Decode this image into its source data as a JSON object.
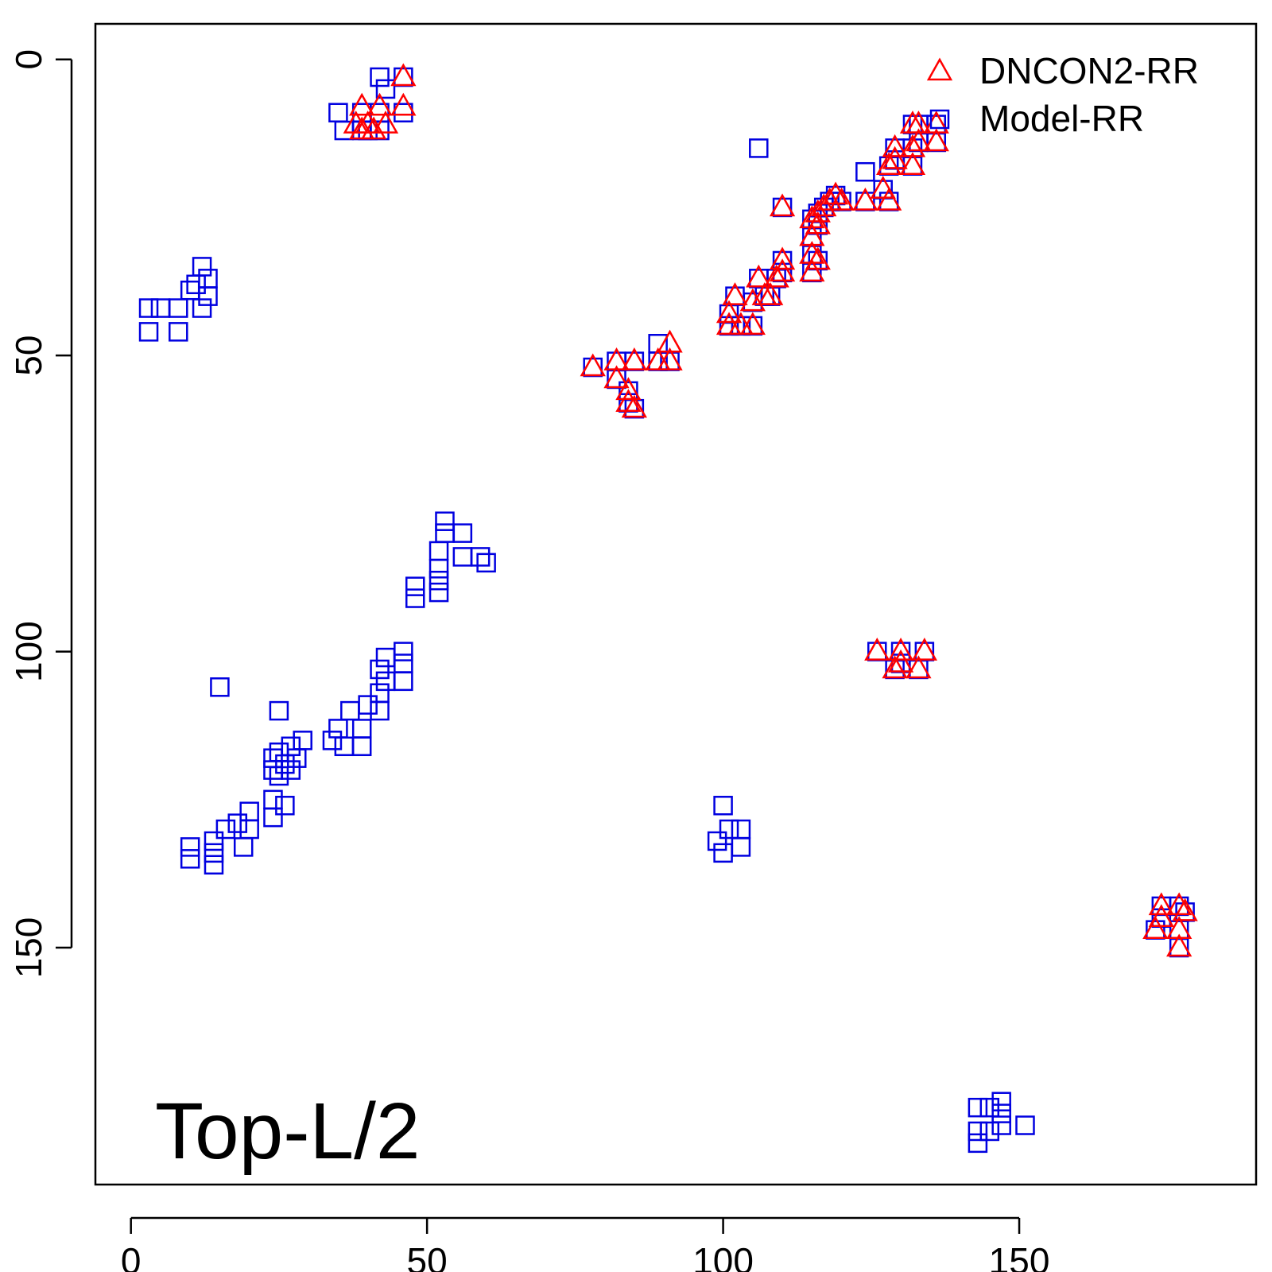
{
  "chart_data": {
    "type": "scatter",
    "annotation": "Top-L/2",
    "xlim": [
      -6,
      190
    ],
    "ylim": [
      190,
      -6
    ],
    "y_axis_inverted": true,
    "x_ticks": [
      0,
      50,
      100,
      150
    ],
    "y_ticks": [
      0,
      50,
      100,
      150
    ],
    "grid": false,
    "legend_position": "top-right",
    "series": [
      {
        "name": "DNCON2-RR",
        "color": "#ff0000",
        "marker": "triangle",
        "points": [
          [
            46,
            3
          ],
          [
            39,
            8
          ],
          [
            42,
            8
          ],
          [
            46,
            8
          ],
          [
            38,
            11
          ],
          [
            40,
            11
          ],
          [
            43,
            11
          ],
          [
            39,
            12
          ],
          [
            41,
            12
          ],
          [
            110,
            25
          ],
          [
            115,
            27
          ],
          [
            116,
            26
          ],
          [
            117,
            25
          ],
          [
            118,
            24
          ],
          [
            119,
            23
          ],
          [
            120,
            24
          ],
          [
            124,
            24
          ],
          [
            128,
            24
          ],
          [
            115,
            30
          ],
          [
            116,
            28
          ],
          [
            127,
            22
          ],
          [
            128,
            18
          ],
          [
            129,
            17
          ],
          [
            129,
            15
          ],
          [
            132,
            18
          ],
          [
            132,
            15
          ],
          [
            133,
            14
          ],
          [
            132,
            11
          ],
          [
            133,
            11
          ],
          [
            136,
            11
          ],
          [
            136,
            14
          ],
          [
            115,
            33
          ],
          [
            116,
            34
          ],
          [
            115,
            36
          ],
          [
            110,
            34
          ],
          [
            110,
            36
          ],
          [
            109,
            37
          ],
          [
            106,
            37
          ],
          [
            107,
            40
          ],
          [
            105,
            41
          ],
          [
            102,
            40
          ],
          [
            101,
            43
          ],
          [
            101,
            45
          ],
          [
            103,
            45
          ],
          [
            105,
            45
          ],
          [
            108,
            40
          ],
          [
            78,
            52
          ],
          [
            82,
            51
          ],
          [
            82,
            54
          ],
          [
            85,
            51
          ],
          [
            84,
            56
          ],
          [
            84,
            58
          ],
          [
            85,
            59
          ],
          [
            89,
            51
          ],
          [
            91,
            51
          ],
          [
            91,
            48
          ],
          [
            126,
            100
          ],
          [
            130,
            100
          ],
          [
            130,
            102
          ],
          [
            129,
            103
          ],
          [
            133,
            103
          ],
          [
            134,
            100
          ],
          [
            174,
            143
          ],
          [
            174,
            145
          ],
          [
            177,
            143
          ],
          [
            178,
            144
          ],
          [
            173,
            147
          ],
          [
            177,
            147
          ],
          [
            177,
            150
          ]
        ]
      },
      {
        "name": "Model-RR",
        "color": "#0000e0",
        "marker": "square",
        "points": [
          [
            42,
            3
          ],
          [
            46,
            3
          ],
          [
            43,
            5
          ],
          [
            35,
            9
          ],
          [
            39,
            9
          ],
          [
            42,
            9
          ],
          [
            46,
            9
          ],
          [
            36,
            12
          ],
          [
            39,
            12
          ],
          [
            40,
            12
          ],
          [
            42,
            12
          ],
          [
            106,
            15
          ],
          [
            110,
            25
          ],
          [
            115,
            27
          ],
          [
            116,
            26
          ],
          [
            117,
            25
          ],
          [
            118,
            24
          ],
          [
            119,
            23
          ],
          [
            120,
            24
          ],
          [
            124,
            24
          ],
          [
            128,
            24
          ],
          [
            124,
            19
          ],
          [
            127,
            22
          ],
          [
            115,
            30
          ],
          [
            116,
            28
          ],
          [
            128,
            18
          ],
          [
            129,
            17
          ],
          [
            129,
            15
          ],
          [
            132,
            18
          ],
          [
            132,
            15
          ],
          [
            133,
            14
          ],
          [
            132,
            11
          ],
          [
            133,
            11
          ],
          [
            136,
            11
          ],
          [
            136,
            14
          ],
          [
            115,
            33
          ],
          [
            116,
            34
          ],
          [
            115,
            36
          ],
          [
            110,
            34
          ],
          [
            110,
            36
          ],
          [
            109,
            37
          ],
          [
            106,
            37
          ],
          [
            107,
            40
          ],
          [
            105,
            41
          ],
          [
            102,
            40
          ],
          [
            101,
            43
          ],
          [
            101,
            45
          ],
          [
            103,
            45
          ],
          [
            105,
            45
          ],
          [
            108,
            40
          ],
          [
            78,
            52
          ],
          [
            82,
            51
          ],
          [
            82,
            54
          ],
          [
            85,
            51
          ],
          [
            84,
            56
          ],
          [
            84,
            58
          ],
          [
            85,
            59
          ],
          [
            89,
            51
          ],
          [
            91,
            51
          ],
          [
            89,
            48
          ],
          [
            126,
            100
          ],
          [
            130,
            100
          ],
          [
            130,
            102
          ],
          [
            129,
            103
          ],
          [
            133,
            103
          ],
          [
            134,
            100
          ],
          [
            174,
            143
          ],
          [
            174,
            145
          ],
          [
            177,
            143
          ],
          [
            178,
            144
          ],
          [
            173,
            147
          ],
          [
            177,
            147
          ],
          [
            177,
            150
          ],
          [
            12,
            35
          ],
          [
            13,
            37
          ],
          [
            10,
            39
          ],
          [
            13,
            40
          ],
          [
            12,
            42
          ],
          [
            8,
            42
          ],
          [
            5,
            42
          ],
          [
            3,
            42
          ],
          [
            3,
            46
          ],
          [
            8,
            46
          ],
          [
            11,
            38
          ],
          [
            53,
            78
          ],
          [
            53,
            80
          ],
          [
            56,
            80
          ],
          [
            52,
            83
          ],
          [
            56,
            84
          ],
          [
            59,
            84
          ],
          [
            60,
            85
          ],
          [
            52,
            86
          ],
          [
            52,
            88
          ],
          [
            48,
            89
          ],
          [
            52,
            90
          ],
          [
            48,
            91
          ],
          [
            46,
            100
          ],
          [
            43,
            101
          ],
          [
            46,
            102
          ],
          [
            42,
            103
          ],
          [
            43,
            105
          ],
          [
            46,
            105
          ],
          [
            42,
            107
          ],
          [
            40,
            109
          ],
          [
            37,
            110
          ],
          [
            42,
            110
          ],
          [
            35,
            113
          ],
          [
            39,
            113
          ],
          [
            34,
            115
          ],
          [
            36,
            116
          ],
          [
            39,
            116
          ],
          [
            29,
            115
          ],
          [
            27,
            116
          ],
          [
            25,
            117
          ],
          [
            24,
            118
          ],
          [
            28,
            118
          ],
          [
            26,
            119
          ],
          [
            24,
            120
          ],
          [
            27,
            120
          ],
          [
            25,
            121
          ],
          [
            15,
            106
          ],
          [
            25,
            110
          ],
          [
            24,
            125
          ],
          [
            26,
            126
          ],
          [
            24,
            128
          ],
          [
            20,
            127
          ],
          [
            18,
            129
          ],
          [
            16,
            130
          ],
          [
            20,
            130
          ],
          [
            14,
            132
          ],
          [
            10,
            133
          ],
          [
            14,
            134
          ],
          [
            19,
            133
          ],
          [
            10,
            135
          ],
          [
            14,
            136
          ],
          [
            100,
            126
          ],
          [
            101,
            130
          ],
          [
            103,
            130
          ],
          [
            99,
            132
          ],
          [
            103,
            133
          ],
          [
            100,
            134
          ],
          [
            147,
            176
          ],
          [
            147,
            178
          ],
          [
            143,
            177
          ],
          [
            145,
            177
          ],
          [
            147,
            180
          ],
          [
            151,
            180
          ],
          [
            143,
            181
          ],
          [
            145,
            181
          ],
          [
            143,
            183
          ]
        ]
      }
    ]
  }
}
